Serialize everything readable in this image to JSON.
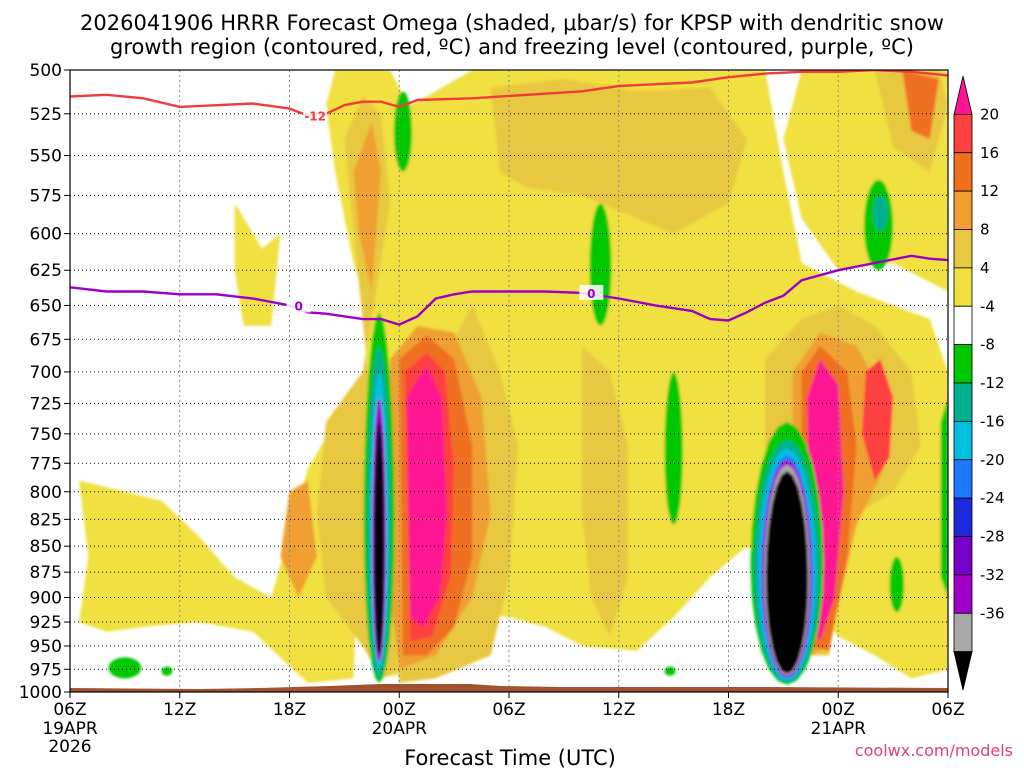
{
  "chart_data": {
    "type": "heatmap",
    "title": "2026041906 HRRR Forecast Omega (shaded, μbar/s) for KPSP with dendritic snow",
    "subtitle": "growth region (contoured, red, ºC) and freezing level (contoured, purple, ºC)",
    "xlabel": "Forecast Time (UTC)",
    "ylabel": "",
    "credit": "coolwx.com/models",
    "x_range_hours": [
      0,
      48
    ],
    "y_range_hpa": [
      1000,
      500
    ],
    "y_ticks": [
      "500",
      "525",
      "550",
      "575",
      "600",
      "625",
      "650",
      "675",
      "700",
      "725",
      "750",
      "775",
      "800",
      "825",
      "850",
      "875",
      "900",
      "925",
      "950",
      "975",
      "1000"
    ],
    "x_ticks": [
      {
        "hour": 0,
        "label": "06Z",
        "date": "19APR",
        "year": "2026"
      },
      {
        "hour": 6,
        "label": "12Z",
        "date": "",
        "year": ""
      },
      {
        "hour": 12,
        "label": "18Z",
        "date": "",
        "year": ""
      },
      {
        "hour": 18,
        "label": "00Z",
        "date": "20APR",
        "year": ""
      },
      {
        "hour": 24,
        "label": "06Z",
        "date": "",
        "year": ""
      },
      {
        "hour": 30,
        "label": "12Z",
        "date": "",
        "year": ""
      },
      {
        "hour": 36,
        "label": "18Z",
        "date": "",
        "year": ""
      },
      {
        "hour": 42,
        "label": "00Z",
        "date": "21APR",
        "year": ""
      },
      {
        "hour": 48,
        "label": "06Z",
        "date": "",
        "year": ""
      }
    ],
    "colorbar": {
      "labels": [
        "20",
        "16",
        "12",
        "8",
        "4",
        "-4",
        "-8",
        "-12",
        "-16",
        "-20",
        "-24",
        "-28",
        "-32",
        "-36"
      ],
      "colors": [
        "#ff1493",
        "#ff4040",
        "#f07020",
        "#f0a030",
        "#e8c840",
        "#f0e040",
        "#ffffff",
        "#00c800",
        "#00b090",
        "#00c0e0",
        "#1e78ff",
        "#1e28dc",
        "#7800c8",
        "#a000c8",
        "#a8a8a8",
        "#000000"
      ]
    },
    "contours": [
      {
        "name": "dendritic-growth -12C",
        "label": "-12",
        "color": "#f03c3c",
        "points": [
          [
            0,
            515
          ],
          [
            2,
            514
          ],
          [
            4,
            516
          ],
          [
            6,
            521
          ],
          [
            8,
            520
          ],
          [
            10,
            519
          ],
          [
            12,
            522
          ],
          [
            13,
            526
          ],
          [
            14,
            525
          ],
          [
            15,
            520
          ],
          [
            16,
            518
          ],
          [
            17,
            518
          ],
          [
            18,
            521
          ],
          [
            19,
            517
          ],
          [
            22,
            516
          ],
          [
            25,
            514
          ],
          [
            28,
            512
          ],
          [
            30,
            509
          ],
          [
            34,
            507
          ],
          [
            36,
            504
          ],
          [
            38,
            502
          ],
          [
            40,
            501
          ],
          [
            42,
            501
          ],
          [
            44,
            500
          ],
          [
            46,
            501
          ],
          [
            48,
            503
          ]
        ]
      },
      {
        "name": "freezing-level 0C",
        "label": "0",
        "color": "#9c00c8",
        "points": [
          [
            0,
            637
          ],
          [
            2,
            640
          ],
          [
            4,
            640
          ],
          [
            6,
            642
          ],
          [
            8,
            642
          ],
          [
            10,
            645
          ],
          [
            12,
            650
          ],
          [
            13,
            655
          ],
          [
            14,
            656
          ],
          [
            16,
            660
          ],
          [
            17,
            660
          ],
          [
            18,
            664
          ],
          [
            19,
            658
          ],
          [
            20,
            645
          ],
          [
            21,
            642
          ],
          [
            22,
            640
          ],
          [
            24,
            640
          ],
          [
            26,
            640
          ],
          [
            28,
            641
          ],
          [
            30,
            645
          ],
          [
            32,
            650
          ],
          [
            34,
            654
          ],
          [
            35,
            660
          ],
          [
            36,
            661
          ],
          [
            37,
            655
          ],
          [
            38,
            648
          ],
          [
            39,
            643
          ],
          [
            40,
            632
          ],
          [
            42,
            625
          ],
          [
            44,
            620
          ],
          [
            46,
            615
          ],
          [
            47,
            617
          ],
          [
            48,
            618
          ]
        ]
      }
    ],
    "omega_features": [
      {
        "kind": "upward",
        "level_min": -36,
        "center_hour": 16.9,
        "p_top": 655,
        "p_bottom": 990,
        "note": "narrow strong rising-motion core, black core 740-960 hPa"
      },
      {
        "kind": "upward",
        "level_min": -36,
        "center_hour": 39.2,
        "p_top": 740,
        "p_bottom": 990,
        "note": "strong rising-motion core, black core 780-980 hPa"
      },
      {
        "kind": "downward",
        "level_max": 20,
        "center_hour": 19.4,
        "p_top": 660,
        "p_bottom": 975,
        "note": "strong sinking maximum right of first core"
      },
      {
        "kind": "downward",
        "level_max": 20,
        "center_hour": 41.3,
        "p_top": 675,
        "p_bottom": 960,
        "note": "strong sinking maximum right of second core"
      },
      {
        "kind": "upward",
        "level_min": -8,
        "center_hour": 18.2,
        "p_top": 512,
        "p_bottom": 560,
        "note": "weak green cell near 520-550 hPa"
      },
      {
        "kind": "upward",
        "level_min": -8,
        "center_hour": 29.0,
        "p_top": 578,
        "p_bottom": 675,
        "note": "weak green cell"
      },
      {
        "kind": "upward",
        "level_min": -12,
        "center_hour": 44.2,
        "p_top": 565,
        "p_bottom": 625,
        "note": "weak green/teal cell"
      }
    ]
  }
}
